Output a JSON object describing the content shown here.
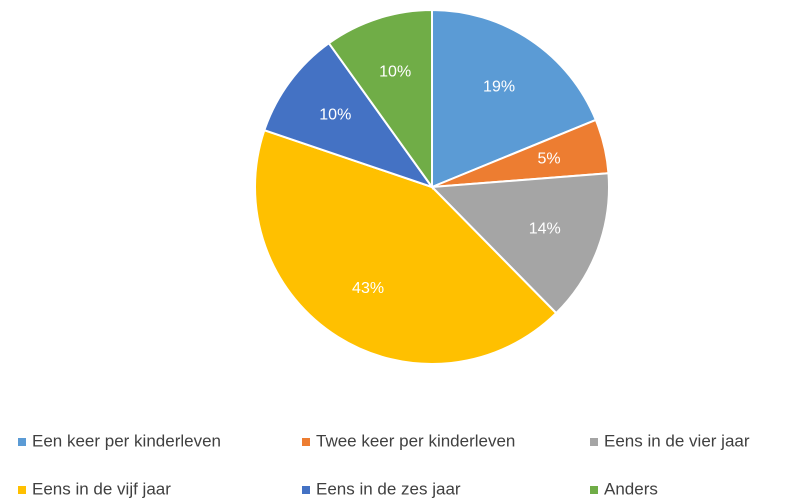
{
  "chart_data": {
    "type": "pie",
    "categories": [
      "Een keer per kinderleven",
      "Twee keer per kinderleven",
      "Eens in de vier jaar",
      "Eens in de vijf jaar",
      "Eens in de zes jaar",
      "Anders"
    ],
    "values": [
      19,
      5,
      14,
      43,
      10,
      10
    ],
    "value_labels": [
      "19%",
      "5%",
      "14%",
      "43%",
      "10%",
      "10%"
    ],
    "colors": [
      "#5b9bd5",
      "#ed7d31",
      "#a5a5a5",
      "#ffc000",
      "#4472c4",
      "#70ad47"
    ]
  }
}
